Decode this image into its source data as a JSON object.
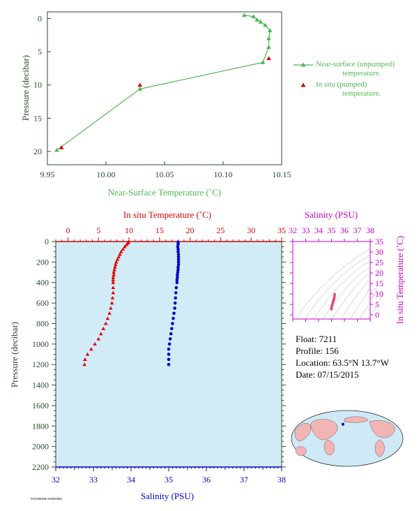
{
  "colors": {
    "green": "#4cb84c",
    "red": "#e00000",
    "blue": "#0000cc",
    "magenta": "#cc00cc",
    "axis_dark": "#2a4a2a",
    "panel_bg": "#d2ecf7"
  },
  "info": {
    "float": "Float:  7211",
    "profile": "Profile:  156",
    "location": "Location:  63.5°N  13.7°W",
    "date": "Date:  07/15/2015"
  },
  "footer_note": "PMTMMMM WMMMMM",
  "chart_data": [
    {
      "type": "line",
      "name": "near-surface",
      "xlabel": "Near-Surface Temperature (˚C)",
      "ylabel": "Pressure (decibar)",
      "xlim": [
        9.95,
        10.15
      ],
      "ylim": [
        22,
        -1
      ],
      "x_ticks": [
        "9.95",
        "10.00",
        "10.05",
        "10.10",
        "10.15"
      ],
      "x_tick_values": [
        9.95,
        10.0,
        10.05,
        10.1,
        10.15
      ],
      "y_ticks": [
        "0",
        "5",
        "10",
        "15",
        "20"
      ],
      "y_tick_values": [
        0,
        5,
        10,
        15,
        20
      ],
      "legend": [
        {
          "line1": "Near-surface (unpumped)",
          "line2": "temperature.",
          "marker": "line-triangle",
          "color": "#4cb84c"
        },
        {
          "line1": "In situ (pumped)",
          "line2": "temperature.",
          "marker": "triangle",
          "color": "#e00000"
        }
      ],
      "series": [
        {
          "name": "unpumped",
          "x": [
            9.958,
            10.029,
            10.134,
            10.139,
            10.139,
            10.14,
            10.136,
            10.132,
            10.129,
            10.126,
            10.118
          ],
          "y": [
            19.8,
            10.6,
            6.6,
            4.3,
            3.0,
            1.8,
            1.0,
            0.5,
            0.2,
            -0.3,
            -0.5
          ]
        },
        {
          "name": "pumped",
          "x": [
            9.962,
            10.029,
            10.139
          ],
          "y": [
            19.4,
            10.0,
            6.0
          ]
        }
      ]
    },
    {
      "type": "scatter",
      "name": "profile",
      "xlabel_top": "In situ Temperature (˚C)",
      "xlabel_bottom": "Salinity (PSU)",
      "ylabel": "Pressure (decibar)",
      "temp_lim": [
        -2,
        35
      ],
      "sal_lim": [
        32,
        38
      ],
      "ylim": [
        2200,
        0
      ],
      "temp_ticks": [
        "0",
        "5",
        "10",
        "15",
        "20",
        "25",
        "30",
        "35"
      ],
      "temp_tick_values": [
        0,
        5,
        10,
        15,
        20,
        25,
        30,
        35
      ],
      "sal_ticks": [
        "32",
        "33",
        "34",
        "35",
        "36",
        "37",
        "38"
      ],
      "sal_tick_values": [
        32,
        33,
        34,
        35,
        36,
        37,
        38
      ],
      "y_ticks": [
        "0",
        "200",
        "400",
        "600",
        "800",
        "1000",
        "1200",
        "1400",
        "1600",
        "1800",
        "2000",
        "2200"
      ],
      "y_tick_values": [
        0,
        200,
        400,
        600,
        800,
        1000,
        1200,
        1400,
        1600,
        1800,
        2000,
        2200
      ],
      "temperature": {
        "p": [
          5,
          15,
          30,
          50,
          75,
          100,
          125,
          150,
          175,
          200,
          225,
          250,
          275,
          300,
          325,
          350,
          375,
          400,
          450,
          500,
          550,
          600,
          650,
          700,
          750,
          800,
          850,
          900,
          950,
          1000,
          1050,
          1100,
          1150,
          1200
        ],
        "t": [
          9.9,
          9.8,
          9.6,
          9.3,
          9.0,
          8.7,
          8.5,
          8.3,
          8.1,
          7.9,
          7.8,
          7.7,
          7.6,
          7.5,
          7.5,
          7.4,
          7.4,
          7.4,
          7.4,
          7.4,
          7.3,
          7.2,
          7.0,
          6.8,
          6.5,
          6.2,
          5.8,
          5.4,
          5.0,
          4.4,
          3.8,
          3.2,
          2.8,
          2.7
        ]
      },
      "salinity": {
        "p": [
          5,
          25,
          50,
          75,
          100,
          125,
          150,
          175,
          200,
          225,
          250,
          275,
          300,
          325,
          350,
          375,
          400,
          450,
          500,
          550,
          600,
          650,
          700,
          750,
          800,
          850,
          900,
          950,
          1000,
          1050,
          1100,
          1150,
          1200
        ],
        "s": [
          35.25,
          35.25,
          35.24,
          35.25,
          35.25,
          35.26,
          35.26,
          35.26,
          35.26,
          35.26,
          35.25,
          35.25,
          35.24,
          35.23,
          35.23,
          35.22,
          35.22,
          35.2,
          35.19,
          35.18,
          35.17,
          35.16,
          35.14,
          35.12,
          35.1,
          35.08,
          35.06,
          35.04,
          35.02,
          35.0,
          35.0,
          35.0,
          35.0
        ]
      }
    },
    {
      "type": "scatter",
      "name": "ts-diagram",
      "xlabel": "Salinity (PSU)",
      "ylabel": "In situ Temperature (˚C)",
      "sal_lim": [
        32,
        38
      ],
      "temp_lim": [
        -2,
        35
      ],
      "sal_ticks": [
        "32",
        "33",
        "34",
        "35",
        "36",
        "37",
        "38"
      ],
      "sal_tick_values": [
        32,
        33,
        34,
        35,
        36,
        37,
        38
      ],
      "temp_ticks": [
        "0",
        "5",
        "10",
        "15",
        "20",
        "25",
        "30",
        "35"
      ],
      "temp_tick_values": [
        0,
        5,
        10,
        15,
        20,
        25,
        30,
        35
      ],
      "points": {
        "s": [
          35.25,
          35.24,
          35.23,
          35.22,
          35.22,
          35.21,
          35.2,
          35.19,
          35.18,
          35.17,
          35.16,
          35.14,
          35.12,
          35.1,
          35.08,
          35.06,
          35.04,
          35.02,
          35.0,
          35.0,
          35.0
        ],
        "t": [
          9.9,
          9.5,
          9.0,
          8.6,
          8.2,
          7.9,
          7.7,
          7.5,
          7.4,
          7.2,
          7.0,
          6.7,
          6.3,
          5.8,
          5.3,
          4.8,
          4.4,
          3.8,
          3.3,
          2.9,
          2.7
        ]
      }
    }
  ],
  "map": {
    "float_lat": 63.5,
    "float_lon": -13.7
  }
}
